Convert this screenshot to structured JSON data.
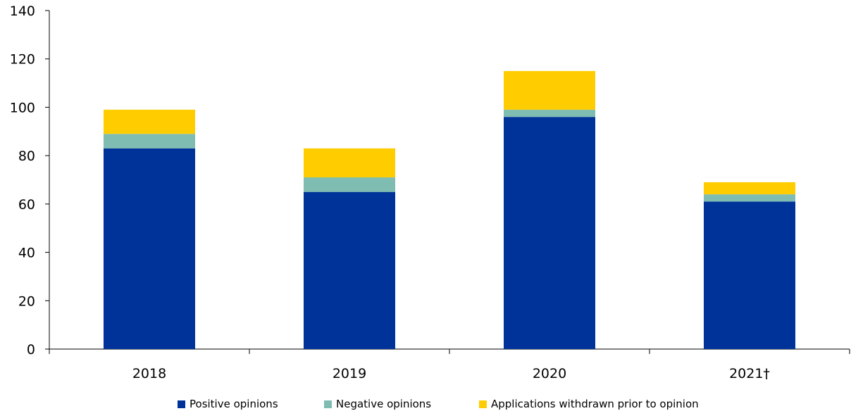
{
  "chart_data": {
    "type": "bar",
    "stacked": true,
    "categories": [
      "2018",
      "2019",
      "2020",
      "2021†"
    ],
    "series": [
      {
        "name": "Positive opinions",
        "values": [
          83,
          65,
          96,
          61
        ],
        "color": "#003399"
      },
      {
        "name": "Negative opinions",
        "values": [
          6,
          6,
          3,
          3
        ],
        "color": "#7fbcb1"
      },
      {
        "name": "Applications withdrawn prior to opinion",
        "values": [
          10,
          12,
          16,
          5
        ],
        "color": "#ffcc00"
      }
    ],
    "ylim": [
      0,
      140
    ],
    "yticks": [
      0,
      20,
      40,
      60,
      80,
      100,
      120,
      140
    ],
    "title": "",
    "xlabel": "",
    "ylabel": "",
    "grid": false,
    "legend_position": "bottom"
  }
}
